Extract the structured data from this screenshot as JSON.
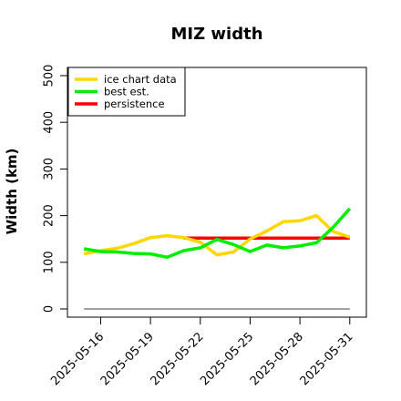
{
  "chart_data": {
    "type": "line",
    "title": "MIZ width",
    "xlabel": "",
    "ylabel": "Width (km)",
    "ylim": [
      0,
      500
    ],
    "yticks": [
      0,
      100,
      200,
      300,
      400,
      500
    ],
    "xlim": [
      "2025-05-14",
      "2025-06-01"
    ],
    "xticks": [
      "2025-05-16",
      "2025-05-19",
      "2025-05-22",
      "2025-05-25",
      "2025-05-28",
      "2025-05-31"
    ],
    "legend_position": "top-left",
    "grid": false,
    "series": [
      {
        "name": "ice chart data",
        "color": "#FFD700",
        "x": [
          "2025-05-15",
          "2025-05-16",
          "2025-05-17",
          "2025-05-18",
          "2025-05-19",
          "2025-05-20",
          "2025-05-21",
          "2025-05-22",
          "2025-05-23",
          "2025-05-24",
          "2025-05-25",
          "2025-05-26",
          "2025-05-27",
          "2025-05-28",
          "2025-05-29",
          "2025-05-30",
          "2025-05-31"
        ],
        "values": [
          118,
          125,
          130,
          140,
          153,
          157,
          153,
          143,
          116,
          122,
          150,
          167,
          187,
          189,
          200,
          166,
          154
        ]
      },
      {
        "name": "best est.",
        "color": "#00EE00",
        "x": [
          "2025-05-15",
          "2025-05-16",
          "2025-05-17",
          "2025-05-18",
          "2025-05-19",
          "2025-05-20",
          "2025-05-21",
          "2025-05-22",
          "2025-05-23",
          "2025-05-24",
          "2025-05-25",
          "2025-05-26",
          "2025-05-27",
          "2025-05-28",
          "2025-05-29",
          "2025-05-30",
          "2025-05-31"
        ],
        "values": [
          129,
          123,
          122,
          119,
          118,
          111,
          125,
          131,
          149,
          138,
          123,
          137,
          131,
          135,
          142,
          175,
          215
        ]
      },
      {
        "name": "persistence",
        "color": "#FF0000",
        "x": [
          "2025-05-21",
          "2025-05-31"
        ],
        "values": [
          152,
          152
        ]
      },
      {
        "name": "",
        "color": "#808080",
        "x": [
          "2025-05-15",
          "2025-05-31"
        ],
        "values": [
          0,
          0
        ]
      }
    ]
  }
}
